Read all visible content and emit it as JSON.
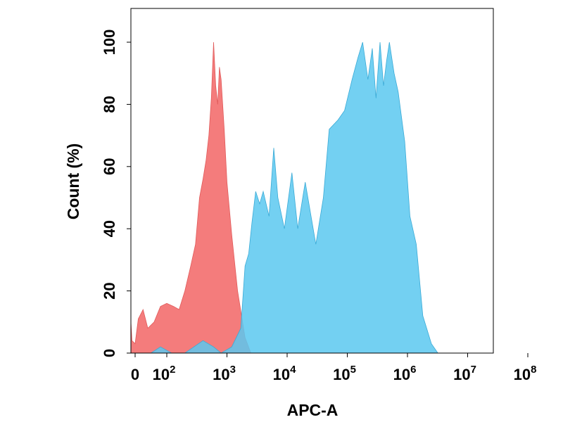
{
  "chart_data": {
    "type": "area",
    "xlabel": "APC-A",
    "ylabel": "Count (%)",
    "x_scale": "biexponential (log above 10^2, linear near 0)",
    "ylim": [
      0,
      100
    ],
    "grid": false,
    "legend": "none",
    "x_ticks": [
      {
        "base": "0",
        "exp": ""
      },
      {
        "base": "10",
        "exp": "2"
      },
      {
        "base": "10",
        "exp": "3"
      },
      {
        "base": "10",
        "exp": "4"
      },
      {
        "base": "10",
        "exp": "5"
      },
      {
        "base": "10",
        "exp": "6"
      },
      {
        "base": "10",
        "exp": "7"
      },
      {
        "base": "10",
        "exp": "8"
      }
    ],
    "y_ticks": [
      "0",
      "20",
      "40",
      "60",
      "80",
      "100"
    ],
    "series": [
      {
        "color": "#f47c7c",
        "stroke": "#e05a5a",
        "points": [
          [
            -30,
            21
          ],
          [
            -20,
            10
          ],
          [
            -10,
            4
          ],
          [
            0,
            3
          ],
          [
            10,
            11
          ],
          [
            25,
            14
          ],
          [
            40,
            8
          ],
          [
            60,
            10
          ],
          [
            80,
            15
          ],
          [
            100,
            16
          ],
          [
            130,
            15
          ],
          [
            160,
            14
          ],
          [
            200,
            20
          ],
          [
            250,
            28
          ],
          [
            300,
            35
          ],
          [
            350,
            50
          ],
          [
            400,
            56
          ],
          [
            450,
            62
          ],
          [
            500,
            70
          ],
          [
            550,
            82
          ],
          [
            600,
            100
          ],
          [
            650,
            86
          ],
          [
            700,
            80
          ],
          [
            750,
            92
          ],
          [
            800,
            88
          ],
          [
            900,
            72
          ],
          [
            1000,
            55
          ],
          [
            1200,
            38
          ],
          [
            1500,
            20
          ],
          [
            2000,
            5
          ],
          [
            2500,
            0
          ]
        ]
      },
      {
        "color": "#5bc8f0",
        "stroke": "#3aaad6",
        "points": [
          [
            50,
            0
          ],
          [
            80,
            2
          ],
          [
            120,
            0
          ],
          [
            200,
            0
          ],
          [
            400,
            4
          ],
          [
            600,
            2
          ],
          [
            800,
            0
          ],
          [
            1200,
            2
          ],
          [
            1700,
            8
          ],
          [
            2000,
            28
          ],
          [
            2300,
            32
          ],
          [
            2600,
            42
          ],
          [
            3000,
            52
          ],
          [
            3500,
            48
          ],
          [
            4000,
            52
          ],
          [
            5000,
            44
          ],
          [
            6000,
            66
          ],
          [
            7000,
            50
          ],
          [
            9000,
            40
          ],
          [
            12000,
            58
          ],
          [
            15000,
            40
          ],
          [
            20000,
            55
          ],
          [
            30000,
            35
          ],
          [
            40000,
            50
          ],
          [
            50000,
            72
          ],
          [
            70000,
            75
          ],
          [
            90000,
            78
          ],
          [
            120000,
            88
          ],
          [
            150000,
            95
          ],
          [
            180000,
            100
          ],
          [
            220000,
            88
          ],
          [
            260000,
            98
          ],
          [
            300000,
            82
          ],
          [
            350000,
            100
          ],
          [
            400000,
            86
          ],
          [
            450000,
            94
          ],
          [
            500000,
            100
          ],
          [
            600000,
            90
          ],
          [
            700000,
            84
          ],
          [
            900000,
            68
          ],
          [
            1100000,
            44
          ],
          [
            1400000,
            35
          ],
          [
            1800000,
            12
          ],
          [
            2500000,
            3
          ],
          [
            3200000,
            0
          ]
        ]
      }
    ]
  }
}
